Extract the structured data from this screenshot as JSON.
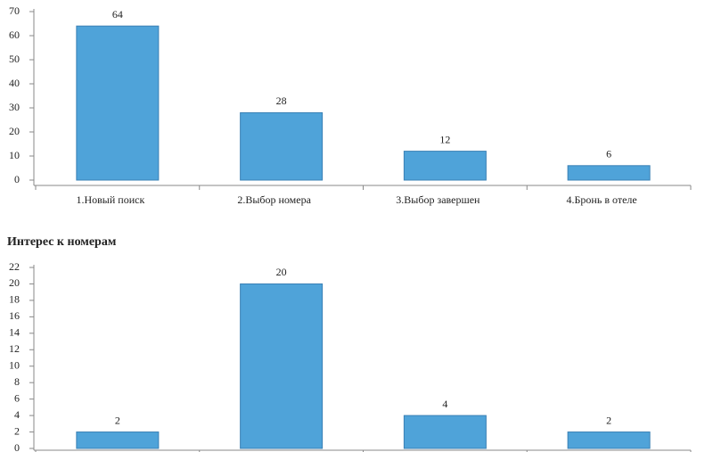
{
  "chart_data": [
    {
      "type": "bar",
      "categories": [
        "1.Новый поиск",
        "2.Выбор номера",
        "3.Выбор завершен",
        "4.Бронь в отеле"
      ],
      "values": [
        64,
        28,
        12,
        6
      ],
      "color": "#4fa3d9",
      "ylim": [
        0,
        70
      ],
      "yticks": [
        0,
        10,
        20,
        30,
        40,
        50,
        60,
        70
      ],
      "grid": false
    },
    {
      "type": "bar",
      "title": "Интерес к номерам",
      "values": [
        2,
        20,
        4,
        2
      ],
      "color": "#4fa3d9",
      "ylim": [
        0,
        22
      ],
      "yticks": [
        0,
        2,
        4,
        6,
        8,
        10,
        12,
        14,
        16,
        18,
        20,
        22
      ],
      "grid": false
    }
  ]
}
